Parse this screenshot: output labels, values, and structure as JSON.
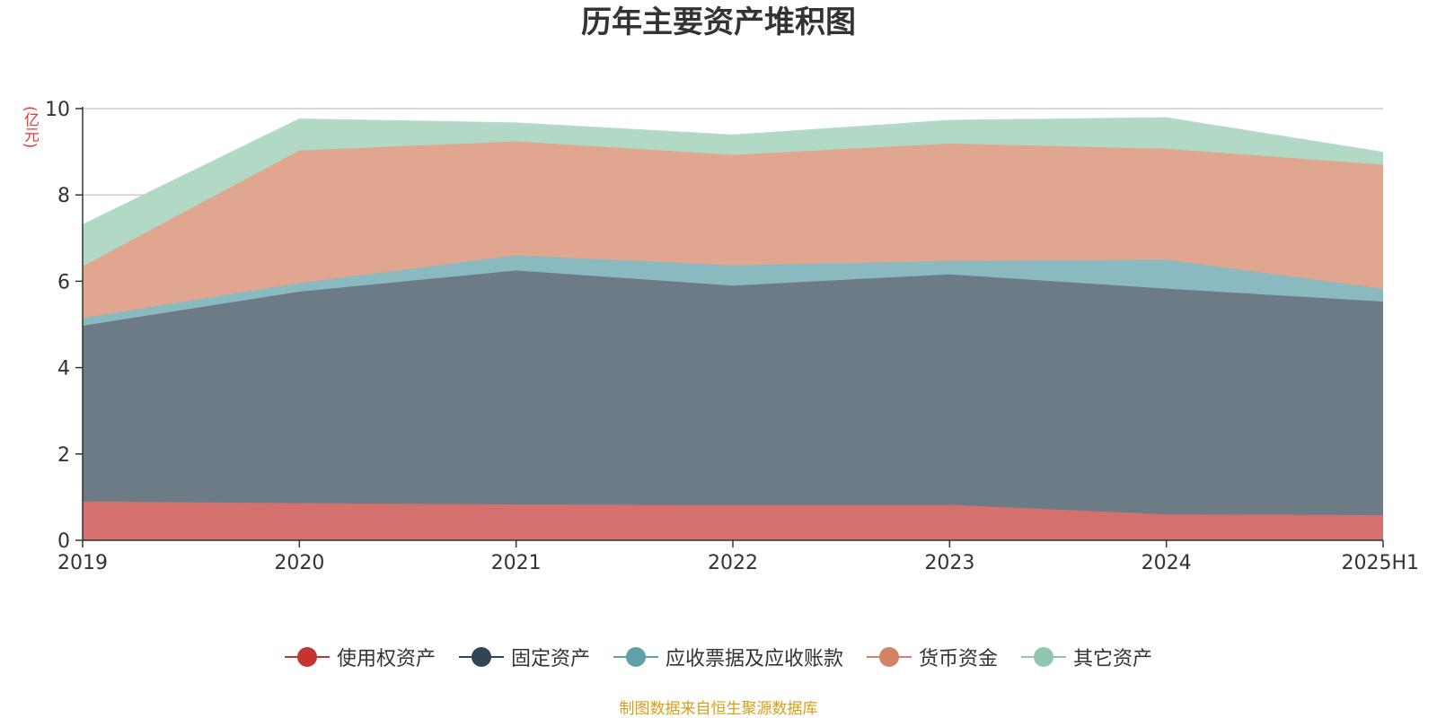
{
  "chart_data": {
    "type": "area",
    "stacked": true,
    "title": "历年主要资产堆积图",
    "ylabel": "(亿元)",
    "xlabel": "",
    "ylim": [
      0,
      10
    ],
    "yticks": [
      0,
      2,
      4,
      6,
      8,
      10
    ],
    "categories": [
      "2019",
      "2020",
      "2021",
      "2022",
      "2023",
      "2024",
      "2025H1"
    ],
    "series": [
      {
        "name": "使用权资产",
        "color": "#c23531",
        "fill": "#d4706e",
        "values": [
          0.9,
          0.86,
          0.83,
          0.82,
          0.82,
          0.6,
          0.58
        ]
      },
      {
        "name": "固定资产",
        "color": "#2f4554",
        "fill": "#6d7b86",
        "values": [
          4.07,
          4.9,
          5.42,
          5.08,
          5.34,
          5.23,
          4.95
        ]
      },
      {
        "name": "应收票据及应收账款",
        "color": "#61a0a8",
        "fill": "#8ab9c0",
        "values": [
          0.18,
          0.2,
          0.35,
          0.47,
          0.31,
          0.67,
          0.3
        ]
      },
      {
        "name": "货币资金",
        "color": "#d48265",
        "fill": "#e0a690",
        "values": [
          1.2,
          3.07,
          2.64,
          2.56,
          2.72,
          2.57,
          2.87
        ]
      },
      {
        "name": "其它资产",
        "color": "#91c7ae",
        "fill": "#b2d8c6",
        "values": [
          0.95,
          0.72,
          0.42,
          0.45,
          0.53,
          0.71,
          0.28
        ]
      }
    ],
    "legend_position": "bottom-center",
    "grid": true
  },
  "footer": {
    "source": "制图数据来自恒生聚源数据库"
  }
}
